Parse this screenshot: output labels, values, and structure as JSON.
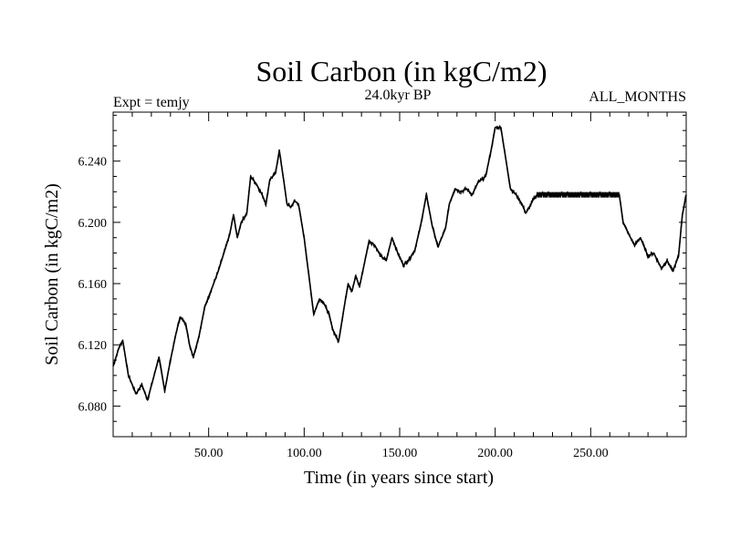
{
  "chart_data": {
    "type": "line",
    "title": "Soil Carbon (in kgC/m2)",
    "left_label": "Expt = temjy",
    "center_label": "24.0kyr BP",
    "right_label": "ALL_MONTHS",
    "xlabel": "Time (in years since start)",
    "ylabel": "Soil Carbon (in kgC/m2)",
    "xlim": [
      0,
      300
    ],
    "ylim": [
      6.06,
      6.272
    ],
    "x_ticks": [
      50,
      100,
      150,
      200,
      250
    ],
    "x_tick_labels": [
      "50.00",
      "100.00",
      "150.00",
      "200.00",
      "250.00"
    ],
    "y_ticks": [
      6.08,
      6.12,
      6.16,
      6.2,
      6.24
    ],
    "y_tick_labels": [
      "6.080",
      "6.120",
      "6.160",
      "6.200",
      "6.240"
    ],
    "series": [
      {
        "name": "Soil Carbon",
        "color": "#000000",
        "x": [
          0,
          3,
          5,
          8,
          12,
          15,
          18,
          21,
          24,
          27,
          30,
          33,
          35,
          38,
          40,
          42,
          45,
          48,
          52,
          55,
          58,
          61,
          63,
          65,
          67,
          70,
          72,
          75,
          78,
          80,
          82,
          85,
          87,
          89,
          91,
          93,
          95,
          97,
          100,
          103,
          105,
          108,
          110,
          113,
          115,
          118,
          121,
          123,
          125,
          127,
          129,
          131,
          134,
          137,
          140,
          143,
          146,
          149,
          152,
          155,
          158,
          161,
          164,
          167,
          170,
          172,
          174,
          176,
          179,
          182,
          185,
          188,
          191,
          195,
          198,
          200,
          203,
          205,
          208,
          211,
          214,
          216,
          218,
          220,
          222,
          225,
          228,
          232,
          235,
          238,
          242,
          245,
          250,
          255,
          260,
          265,
          267,
          270,
          273,
          276,
          280,
          283,
          287,
          290,
          293,
          296,
          298,
          300
        ],
        "values": [
          6.106,
          6.118,
          6.123,
          6.1,
          6.088,
          6.094,
          6.084,
          6.098,
          6.112,
          6.09,
          6.11,
          6.128,
          6.138,
          6.134,
          6.12,
          6.112,
          6.126,
          6.145,
          6.158,
          6.168,
          6.18,
          6.192,
          6.205,
          6.19,
          6.2,
          6.206,
          6.23,
          6.225,
          6.218,
          6.212,
          6.228,
          6.232,
          6.247,
          6.23,
          6.212,
          6.21,
          6.214,
          6.212,
          6.19,
          6.16,
          6.14,
          6.15,
          6.148,
          6.14,
          6.13,
          6.122,
          6.145,
          6.16,
          6.155,
          6.165,
          6.158,
          6.17,
          6.188,
          6.185,
          6.178,
          6.175,
          6.19,
          6.18,
          6.172,
          6.176,
          6.182,
          6.198,
          6.218,
          6.198,
          6.184,
          6.19,
          6.196,
          6.212,
          6.222,
          6.22,
          6.222,
          6.218,
          6.226,
          6.23,
          6.248,
          6.262,
          6.262,
          6.246,
          6.222,
          6.218,
          6.212,
          6.206,
          6.21,
          6.215,
          6.218,
          6.218,
          6.218,
          6.218,
          6.218,
          6.218,
          6.218,
          6.218,
          6.218,
          6.218,
          6.218,
          6.218,
          6.2,
          6.192,
          6.185,
          6.19,
          6.178,
          6.18,
          6.17,
          6.175,
          6.168,
          6.178,
          6.205,
          6.218
        ]
      }
    ]
  }
}
